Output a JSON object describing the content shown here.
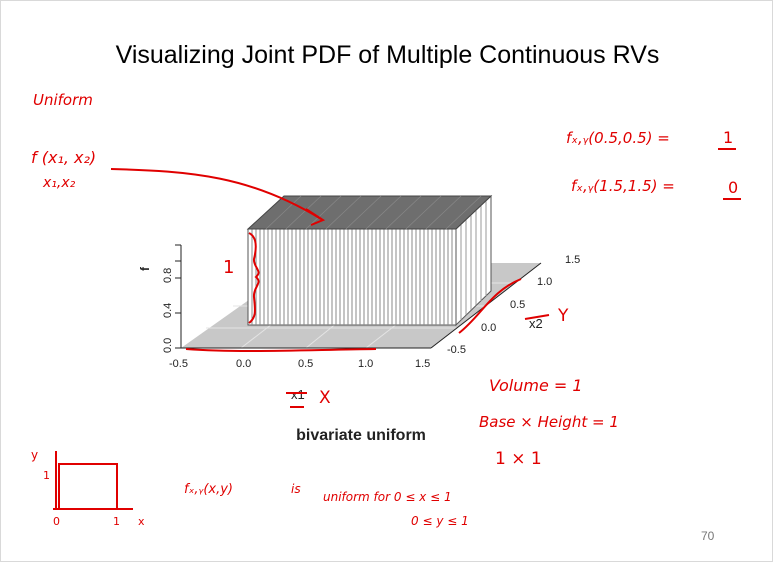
{
  "slide": {
    "title": "Visualizing Joint PDF of Multiple Continuous RVs",
    "page_number": "70"
  },
  "plot": {
    "caption": "bivariate uniform",
    "z_axis_label": "f",
    "z_ticks": [
      "0.0",
      "0.4",
      "0.8"
    ],
    "x1_ticks": [
      "-0.5",
      "0.0",
      "0.5",
      "1.0",
      "1.5"
    ],
    "x2_ticks": [
      "-0.5",
      "0.0",
      "0.5",
      "1.0",
      "1.5"
    ],
    "x1_label": "x1",
    "x2_label": "x2",
    "surface_color": "#6e6e6e",
    "floor_color": "#c8c8c8"
  },
  "annotations": {
    "ink_color": "#e00000",
    "uniform_word": "Uniform",
    "joint_f": "f (x₁, x₂)",
    "vars": "x₁,x₂",
    "height_one": "1",
    "x_letter": "X",
    "y_letter": "Y",
    "eq1_lhs": "fₓ,ᵧ(0.5,0.5) =",
    "eq1_rhs": "1",
    "eq2_lhs": "fₓ,ᵧ(1.5,1.5) =",
    "eq2_rhs": "0",
    "volume": "Volume = 1",
    "base_height": "Base × Height = 1",
    "one_times_one": "1 × 1",
    "sketch_y": "y",
    "sketch_one_y": "1",
    "sketch_zero": "0",
    "sketch_one_x": "1",
    "sketch_x": "x",
    "fxy_text": "fₓ,ᵧ(x,y)",
    "is_text": "is",
    "uniform_for": "uniform for  0 ≤ x ≤ 1",
    "y_range": "0 ≤ y ≤ 1"
  }
}
